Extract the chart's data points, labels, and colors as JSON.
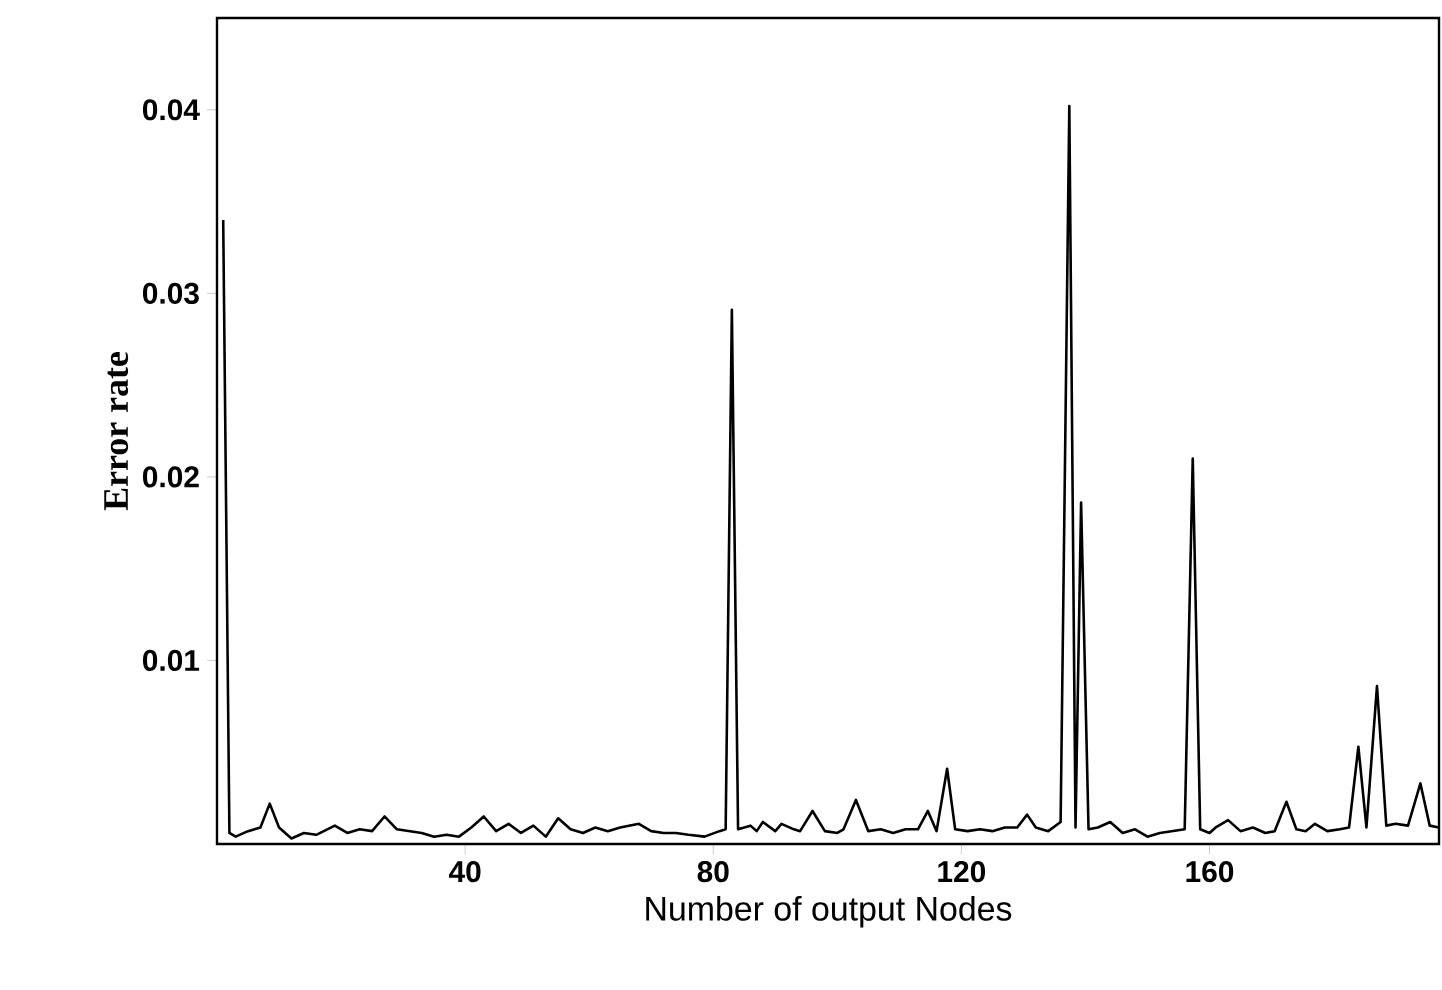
{
  "chart_data": {
    "type": "line",
    "xlabel": "Number of output Nodes",
    "ylabel": "Error rate",
    "xlim": [
      0,
      197
    ],
    "ylim": [
      0,
      0.045
    ],
    "xticks": [
      40,
      80,
      120,
      160
    ],
    "yticks": [
      0.01,
      0.02,
      0.03,
      0.04
    ],
    "grid": false,
    "marker": "none",
    "line_style": "solid",
    "series": [
      {
        "color": "#000000",
        "x": [
          1,
          2,
          3,
          5,
          7,
          8.5,
          10,
          12,
          14,
          16,
          19,
          21,
          23,
          25,
          27,
          29,
          31,
          33,
          35,
          37,
          39,
          41,
          43,
          45,
          47,
          49,
          51,
          53,
          55,
          57,
          59,
          61,
          63,
          65,
          68,
          70,
          72,
          74,
          76,
          78.6,
          81,
          82,
          83,
          84,
          86,
          87,
          88,
          90,
          91,
          93,
          94,
          96,
          98,
          100,
          101,
          103,
          105,
          107,
          109,
          111,
          113,
          114.6,
          116,
          117.7,
          119,
          121,
          123,
          125,
          127,
          129,
          130.6,
          132,
          134,
          136,
          137.4,
          138.4,
          139.3,
          140.5,
          142,
          144,
          146,
          148,
          150,
          152,
          154,
          156,
          157.3,
          158.5,
          160,
          161,
          163,
          165,
          167,
          169,
          170.5,
          172.4,
          174,
          175.5,
          177,
          179,
          181,
          182.5,
          184,
          185.3,
          187,
          188.5,
          190,
          192,
          194,
          195.5,
          197
        ],
        "values": [
          0.034,
          0.0006,
          0.0004,
          0.0007,
          0.0009,
          0.0022,
          0.0009,
          0.0003,
          0.0006,
          0.0005,
          0.001,
          0.0006,
          0.0008,
          0.0007,
          0.0015,
          0.0008,
          0.0007,
          0.0006,
          0.0004,
          0.0005,
          0.0004,
          0.0009,
          0.0015,
          0.0007,
          0.0011,
          0.0006,
          0.001,
          0.0004,
          0.0014,
          0.0008,
          0.0006,
          0.0009,
          0.0007,
          0.0009,
          0.0011,
          0.0007,
          0.0006,
          0.0006,
          0.0005,
          0.0004,
          0.0007,
          0.0008,
          0.0291,
          0.0008,
          0.001,
          0.0007,
          0.0012,
          0.0007,
          0.0011,
          0.0008,
          0.0007,
          0.0018,
          0.0007,
          0.0006,
          0.0008,
          0.0024,
          0.0007,
          0.0008,
          0.0006,
          0.0008,
          0.0008,
          0.0018,
          0.0007,
          0.0041,
          0.0008,
          0.0007,
          0.0008,
          0.0007,
          0.0009,
          0.0009,
          0.0016,
          0.0009,
          0.0007,
          0.0012,
          0.0402,
          0.0009,
          0.0186,
          0.0008,
          0.0009,
          0.0012,
          0.0006,
          0.0008,
          0.0004,
          0.0006,
          0.0007,
          0.0008,
          0.021,
          0.0008,
          0.0006,
          0.0009,
          0.0013,
          0.0007,
          0.0009,
          0.0006,
          0.0007,
          0.0023,
          0.0008,
          0.0007,
          0.0011,
          0.0007,
          0.0008,
          0.0009,
          0.0053,
          0.0009,
          0.0086,
          0.001,
          0.0011,
          0.001,
          0.0033,
          0.001,
          0.0009
        ]
      }
    ]
  }
}
